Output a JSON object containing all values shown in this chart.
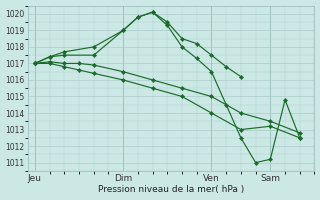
{
  "background_color": "#cce8e4",
  "grid_color": "#aacccc",
  "line_color": "#1a6b2a",
  "title": "Pression niveau de la mer( hPa )",
  "ylim": [
    1010.5,
    1020.5
  ],
  "yticks": [
    1011,
    1012,
    1013,
    1014,
    1015,
    1016,
    1017,
    1018,
    1019,
    1020
  ],
  "day_labels": [
    "Jeu",
    "Dim",
    "Ven",
    "Sam"
  ],
  "day_positions": [
    0,
    36,
    72,
    96
  ],
  "xlim": [
    -3,
    114
  ],
  "series": [
    {
      "x": [
        0,
        6,
        12,
        24,
        36,
        42,
        48,
        54,
        60,
        66,
        72,
        78,
        84
      ],
      "y": [
        1017.0,
        1017.4,
        1017.7,
        1018.0,
        1019.0,
        1019.8,
        1020.1,
        1019.5,
        1018.5,
        1018.2,
        1017.5,
        1016.8,
        1016.2
      ]
    },
    {
      "x": [
        0,
        6,
        12,
        24,
        36,
        42,
        48,
        54,
        60,
        66,
        72,
        78,
        84,
        90,
        96,
        102,
        108
      ],
      "y": [
        1017.0,
        1017.4,
        1017.5,
        1017.5,
        1019.0,
        1019.8,
        1020.1,
        1019.3,
        1018.0,
        1017.3,
        1016.5,
        1014.5,
        1012.5,
        1011.0,
        1011.2,
        1014.8,
        1012.5
      ]
    },
    {
      "x": [
        0,
        6,
        12,
        18,
        24,
        36,
        48,
        60,
        72,
        84,
        96,
        108
      ],
      "y": [
        1017.0,
        1017.1,
        1017.0,
        1017.0,
        1016.9,
        1016.5,
        1016.0,
        1015.5,
        1015.0,
        1014.0,
        1013.5,
        1012.8
      ]
    },
    {
      "x": [
        0,
        6,
        12,
        18,
        24,
        36,
        48,
        60,
        72,
        84,
        96,
        108
      ],
      "y": [
        1017.0,
        1017.0,
        1016.8,
        1016.6,
        1016.4,
        1016.0,
        1015.5,
        1015.0,
        1014.0,
        1013.0,
        1013.2,
        1012.5
      ]
    }
  ]
}
